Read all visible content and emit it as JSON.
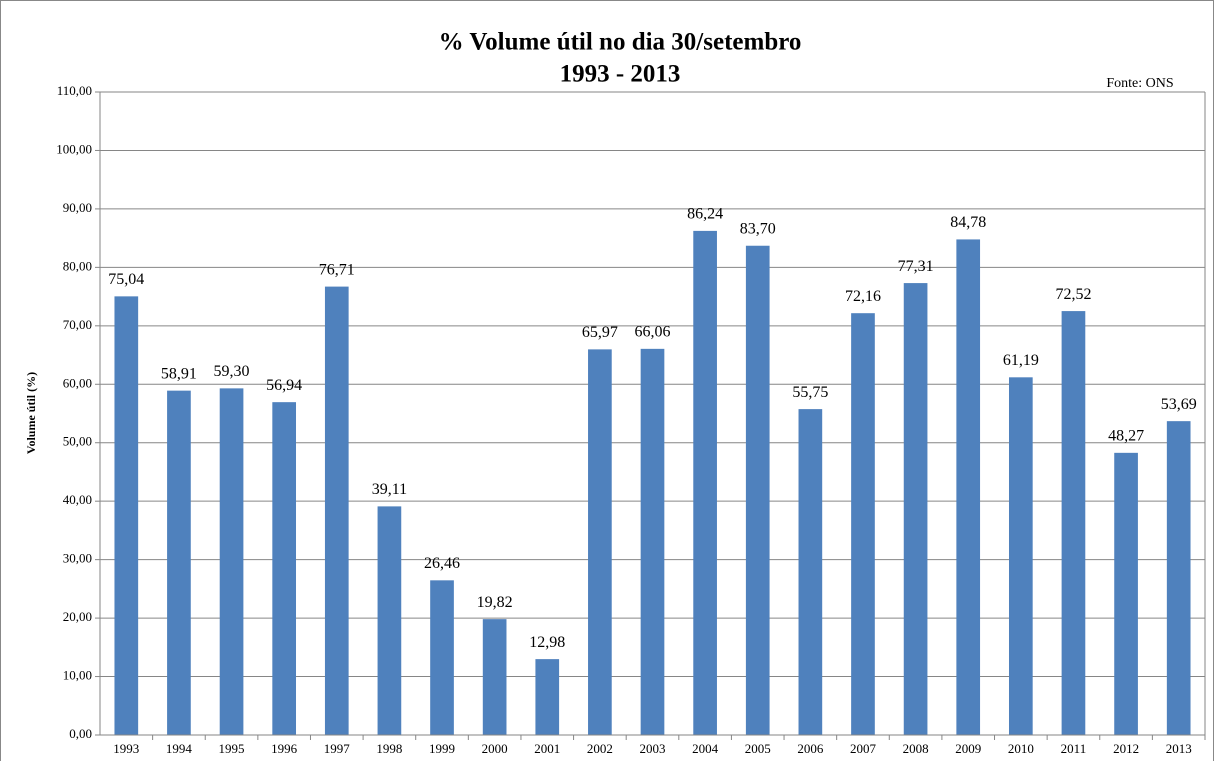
{
  "chart_data": {
    "type": "bar",
    "title": "% Volume útil no dia 30/setembro",
    "subtitle": "1993 - 2013",
    "annotation": "Fonte: ONS",
    "y_label": "Volume útil (%)",
    "categories": [
      "1993",
      "1994",
      "1995",
      "1996",
      "1997",
      "1998",
      "1999",
      "2000",
      "2001",
      "2002",
      "2003",
      "2004",
      "2005",
      "2006",
      "2007",
      "2008",
      "2009",
      "2010",
      "2011",
      "2012",
      "2013"
    ],
    "values": [
      75.04,
      58.91,
      59.3,
      56.94,
      76.71,
      39.11,
      26.46,
      19.82,
      12.98,
      65.97,
      66.06,
      86.24,
      83.7,
      55.75,
      72.16,
      77.31,
      84.78,
      61.19,
      72.52,
      48.27,
      53.69
    ],
    "value_labels": [
      "75,04",
      "58,91",
      "59,30",
      "56,94",
      "76,71",
      "39,11",
      "26,46",
      "19,82",
      "12,98",
      "65,97",
      "66,06",
      "86,24",
      "83,70",
      "55,75",
      "72,16",
      "77,31",
      "84,78",
      "61,19",
      "72,52",
      "48,27",
      "53,69"
    ],
    "color": "#4f81bd",
    "ylim": [
      0,
      110
    ],
    "yticks": [
      {
        "value": 0,
        "label": "0,00"
      },
      {
        "value": 10,
        "label": "10,00"
      },
      {
        "value": 20,
        "label": "20,00"
      },
      {
        "value": 30,
        "label": "30,00"
      },
      {
        "value": 40,
        "label": "40,00"
      },
      {
        "value": 50,
        "label": "50,00"
      },
      {
        "value": 60,
        "label": "60,00"
      },
      {
        "value": 70,
        "label": "70,00"
      },
      {
        "value": 80,
        "label": "80,00"
      },
      {
        "value": 90,
        "label": "90,00"
      },
      {
        "value": 100,
        "label": "100,00"
      },
      {
        "value": 110,
        "label": "110,00"
      }
    ],
    "grid": true
  }
}
